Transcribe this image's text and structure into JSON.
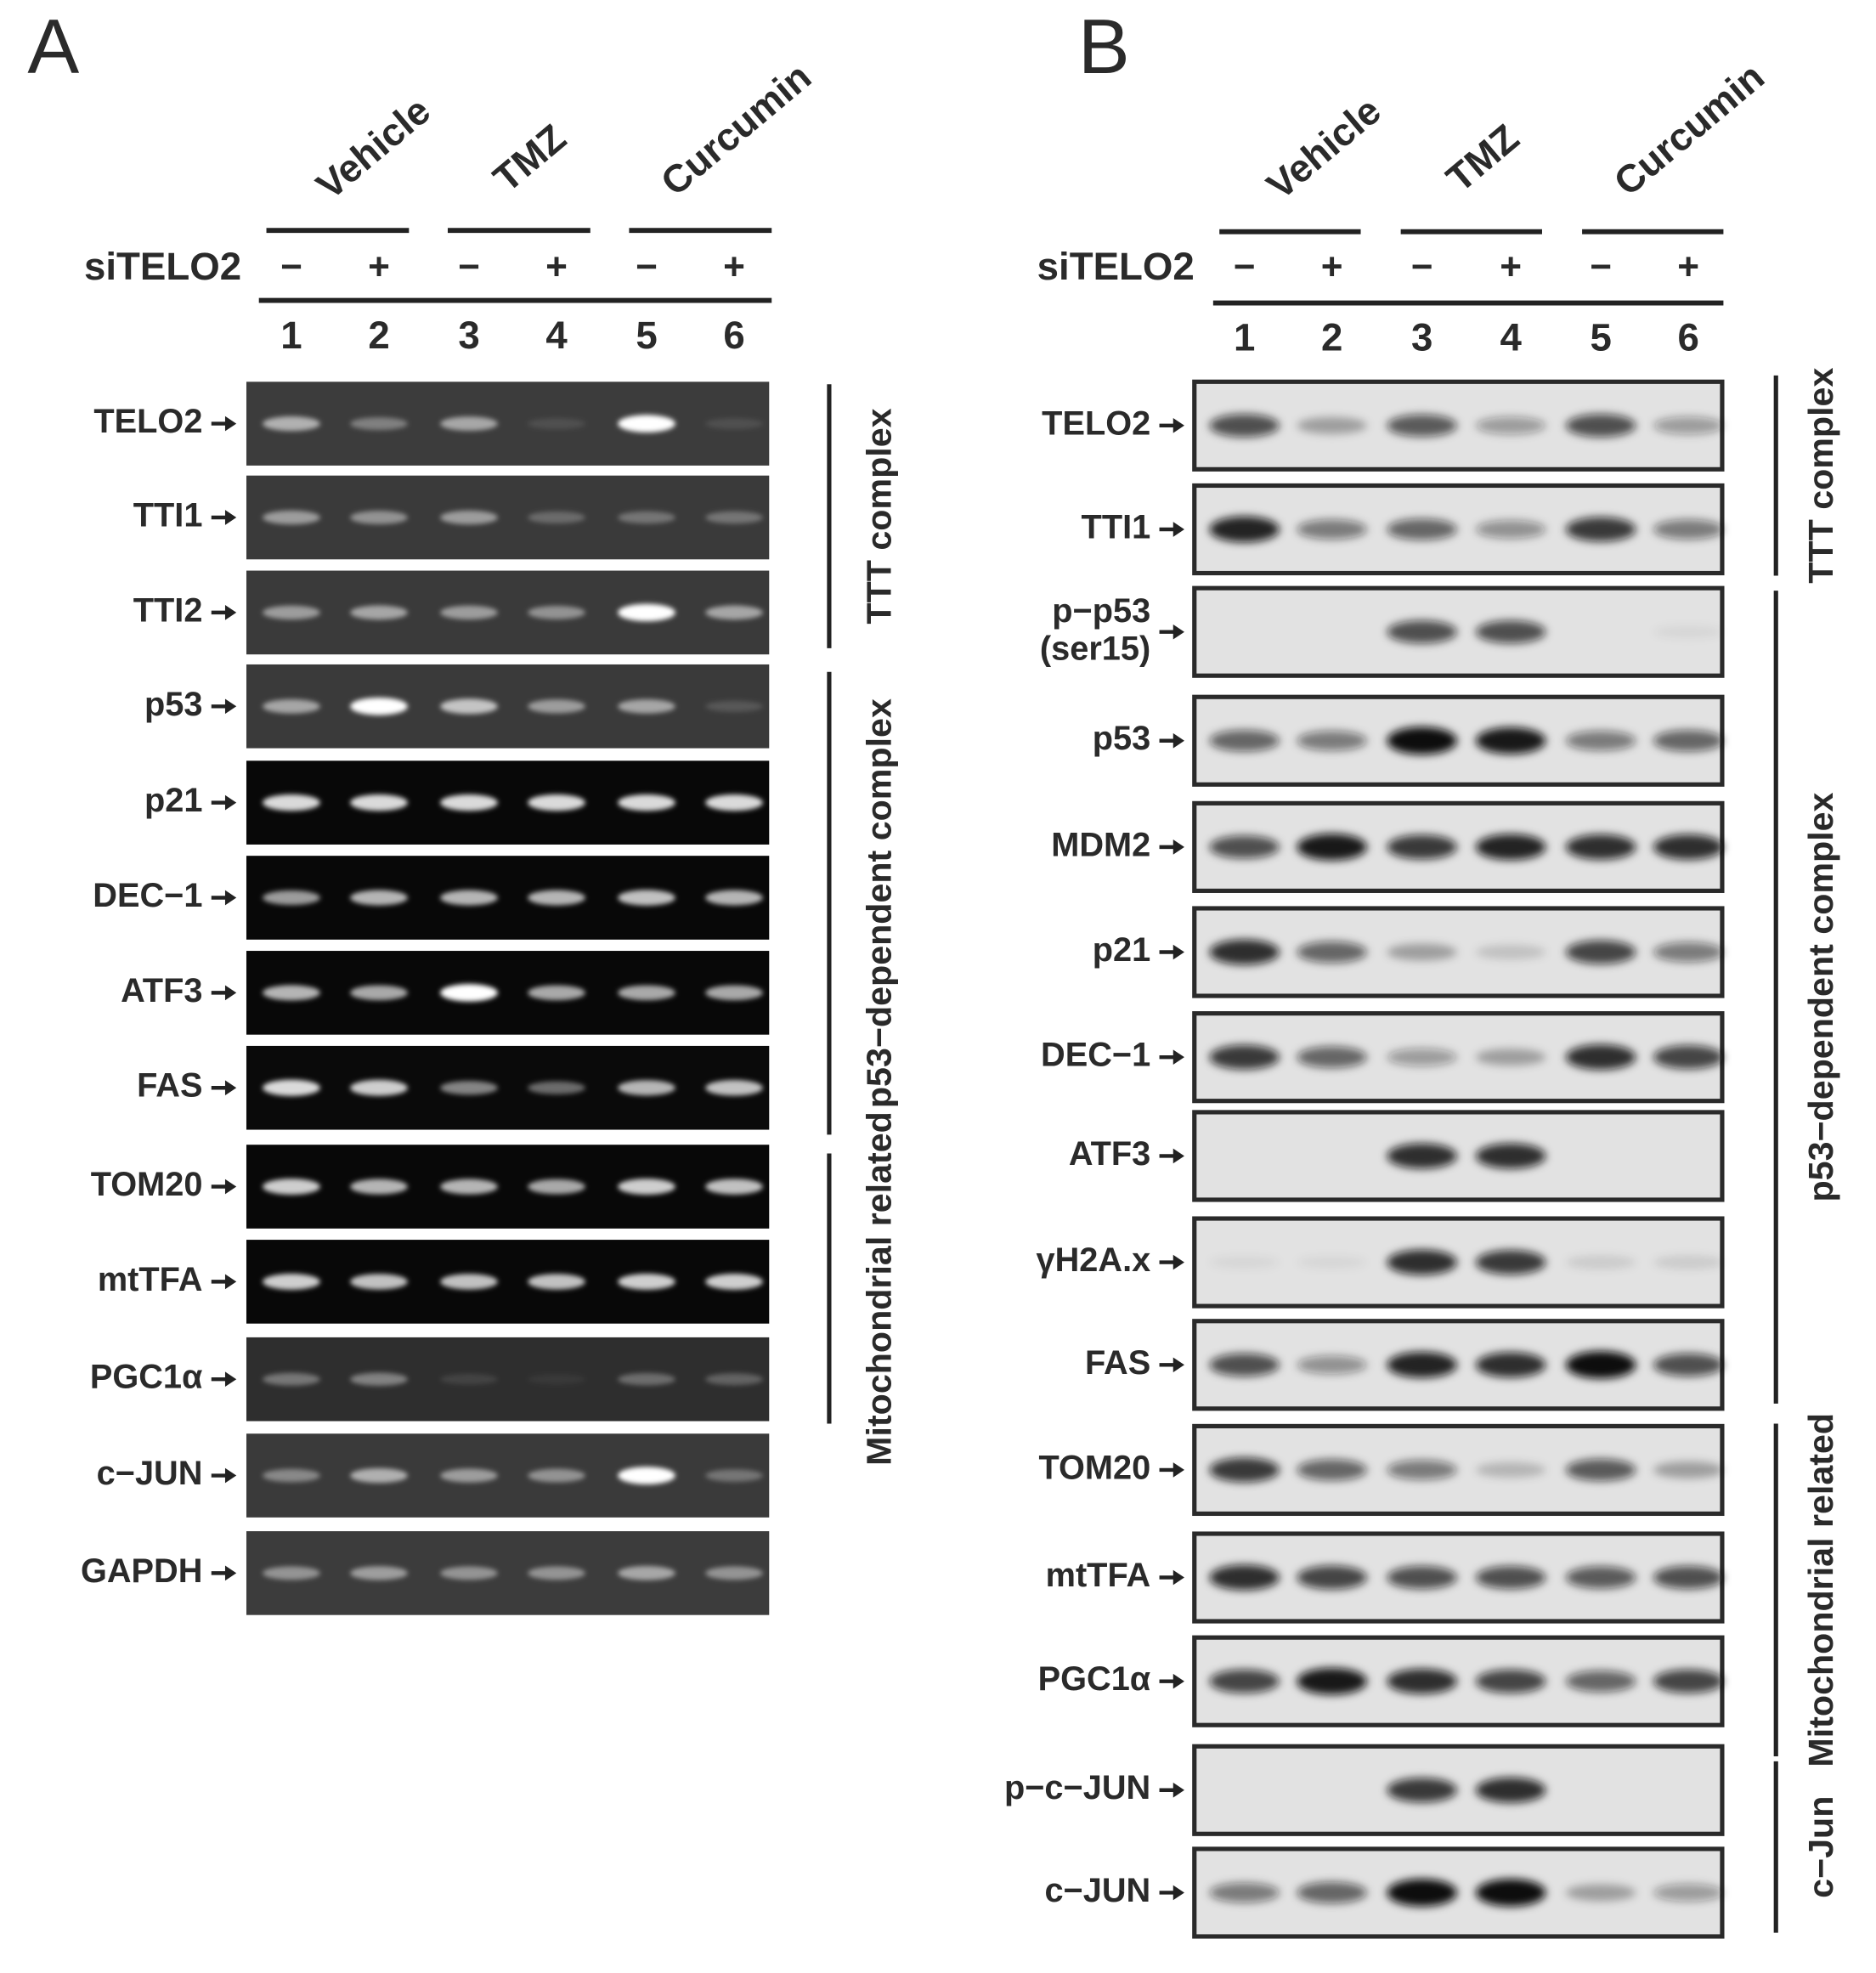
{
  "panels": [
    {
      "letter": "A",
      "groups": [
        "Vehicle",
        "TMZ",
        "Curcumin"
      ],
      "treatment_label": "siTELO2",
      "signs": [
        "−",
        "+",
        "−",
        "+",
        "−",
        "+"
      ],
      "lanes": [
        1,
        2,
        3,
        4,
        5,
        6
      ],
      "rows": [
        {
          "label": [
            "TELO2"
          ]
        },
        {
          "label": [
            "TTI1"
          ]
        },
        {
          "label": [
            "TTI2"
          ]
        },
        {
          "label": [
            "p53"
          ]
        },
        {
          "label": [
            "p21"
          ]
        },
        {
          "label": [
            "DEC−1"
          ]
        },
        {
          "label": [
            "ATF3"
          ]
        },
        {
          "label": [
            "FAS"
          ]
        },
        {
          "label": [
            "TOM20"
          ]
        },
        {
          "label": [
            "mtTFA"
          ]
        },
        {
          "label": [
            "PGC1α"
          ]
        },
        {
          "label": [
            "c−JUN"
          ]
        },
        {
          "label": [
            "GAPDH"
          ]
        }
      ],
      "brackets": [
        {
          "label": "TTT complex"
        },
        {
          "label": "p53−dependent complex"
        },
        {
          "label": "Mitochondrial related"
        }
      ]
    },
    {
      "letter": "B",
      "groups": [
        "Vehicle",
        "TMZ",
        "Curcumin"
      ],
      "treatment_label": "siTELO2",
      "signs": [
        "−",
        "+",
        "−",
        "+",
        "−",
        "+"
      ],
      "lanes": [
        1,
        2,
        3,
        4,
        5,
        6
      ],
      "rows": [
        {
          "label": [
            "TELO2"
          ]
        },
        {
          "label": [
            "TTI1"
          ]
        },
        {
          "label": [
            "p−p53",
            "(ser15)"
          ]
        },
        {
          "label": [
            "p53"
          ]
        },
        {
          "label": [
            "MDM2"
          ]
        },
        {
          "label": [
            "p21"
          ]
        },
        {
          "label": [
            "DEC−1"
          ]
        },
        {
          "label": [
            "ATF3"
          ]
        },
        {
          "label": [
            "γH2A.x"
          ]
        },
        {
          "label": [
            "FAS"
          ]
        },
        {
          "label": [
            "TOM20"
          ]
        },
        {
          "label": [
            "mtTFA"
          ]
        },
        {
          "label": [
            "PGC1α"
          ]
        },
        {
          "label": [
            "p−c−JUN"
          ]
        },
        {
          "label": [
            "c−JUN"
          ]
        }
      ],
      "brackets": [
        {
          "label": "TTT complex"
        },
        {
          "label": "p53−dependent complex"
        },
        {
          "label": "Mitochondrial related"
        },
        {
          "label": "c−Jun"
        }
      ]
    }
  ]
}
